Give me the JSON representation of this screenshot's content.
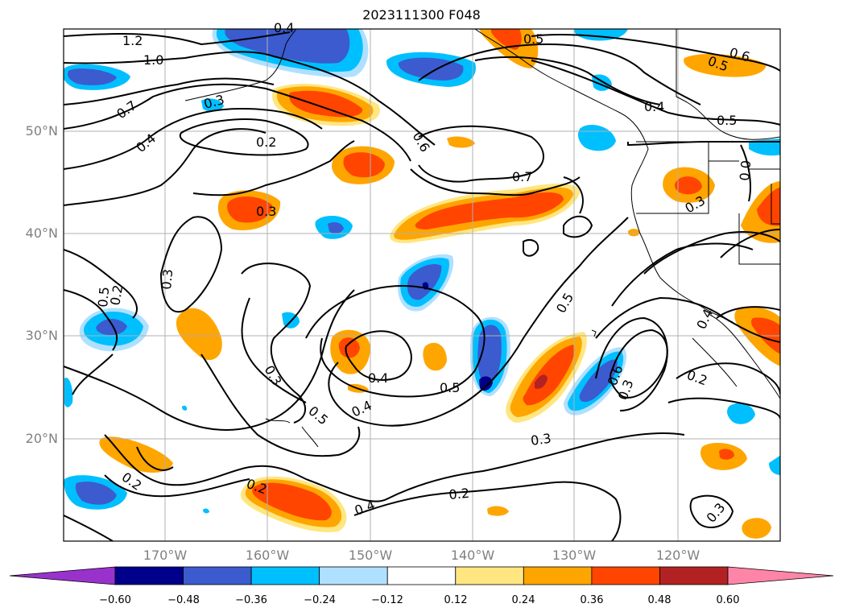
{
  "title": "2023111300 F048",
  "lat_labels": [
    "50°N",
    "40°N",
    "30°N",
    "20°N"
  ],
  "lon_labels": [
    "170°W",
    "160°W",
    "150°W",
    "140°W",
    "130°W",
    "120°W"
  ],
  "contour_labels": [
    "1.2",
    "1.0",
    "0.7",
    "0.4",
    "0.3",
    "0.2",
    "0.3",
    "0.6",
    "0.7",
    "0.5",
    "0.4",
    "0.5",
    "0.6",
    "0.3",
    "0.5",
    "0.3",
    "0.2",
    "0.3",
    "0.5",
    "0.4",
    "0.4",
    "0.5",
    "0.3",
    "0.2",
    "0.4",
    "0.2",
    "0.5",
    "0.3",
    "0.2",
    "0.3",
    "0.4",
    "0.5",
    "0.6",
    "0.4",
    "0.5",
    "0.0"
  ],
  "colorbar": {
    "colors": [
      "#9932cc",
      "#00008b",
      "#3b5bcf",
      "#00bfff",
      "#b0e0ff",
      "#ffffff",
      "#ffe680",
      "#ffa500",
      "#ff4500",
      "#b22222",
      "#ff85a8"
    ],
    "ticks": [
      "−0.60",
      "−0.48",
      "−0.36",
      "−0.24",
      "−0.12",
      "0.12",
      "0.24",
      "0.36",
      "0.48",
      "0.60"
    ]
  },
  "colors": {
    "contour": "#000000",
    "grid": "#b0b0b0",
    "coast": "#000000"
  }
}
